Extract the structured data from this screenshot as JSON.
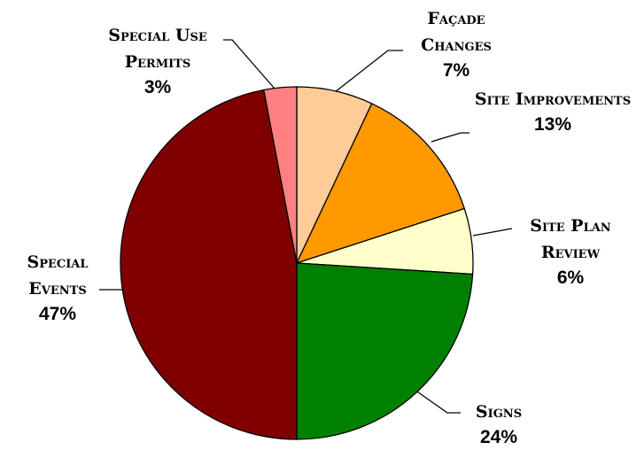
{
  "chart_data": {
    "type": "pie",
    "categories": [
      "Façade Changes",
      "Site Improvements",
      "Site Plan Review",
      "Signs",
      "Special Events",
      "Special Use Permits"
    ],
    "values": [
      7,
      13,
      6,
      24,
      47,
      3
    ],
    "value_labels": [
      "7%",
      "13%",
      "6%",
      "24%",
      "47%",
      "3%"
    ],
    "colors": [
      "#FFCC99",
      "#FF9900",
      "#FFFFCC",
      "#008000",
      "#800000",
      "#FF8080"
    ]
  }
}
